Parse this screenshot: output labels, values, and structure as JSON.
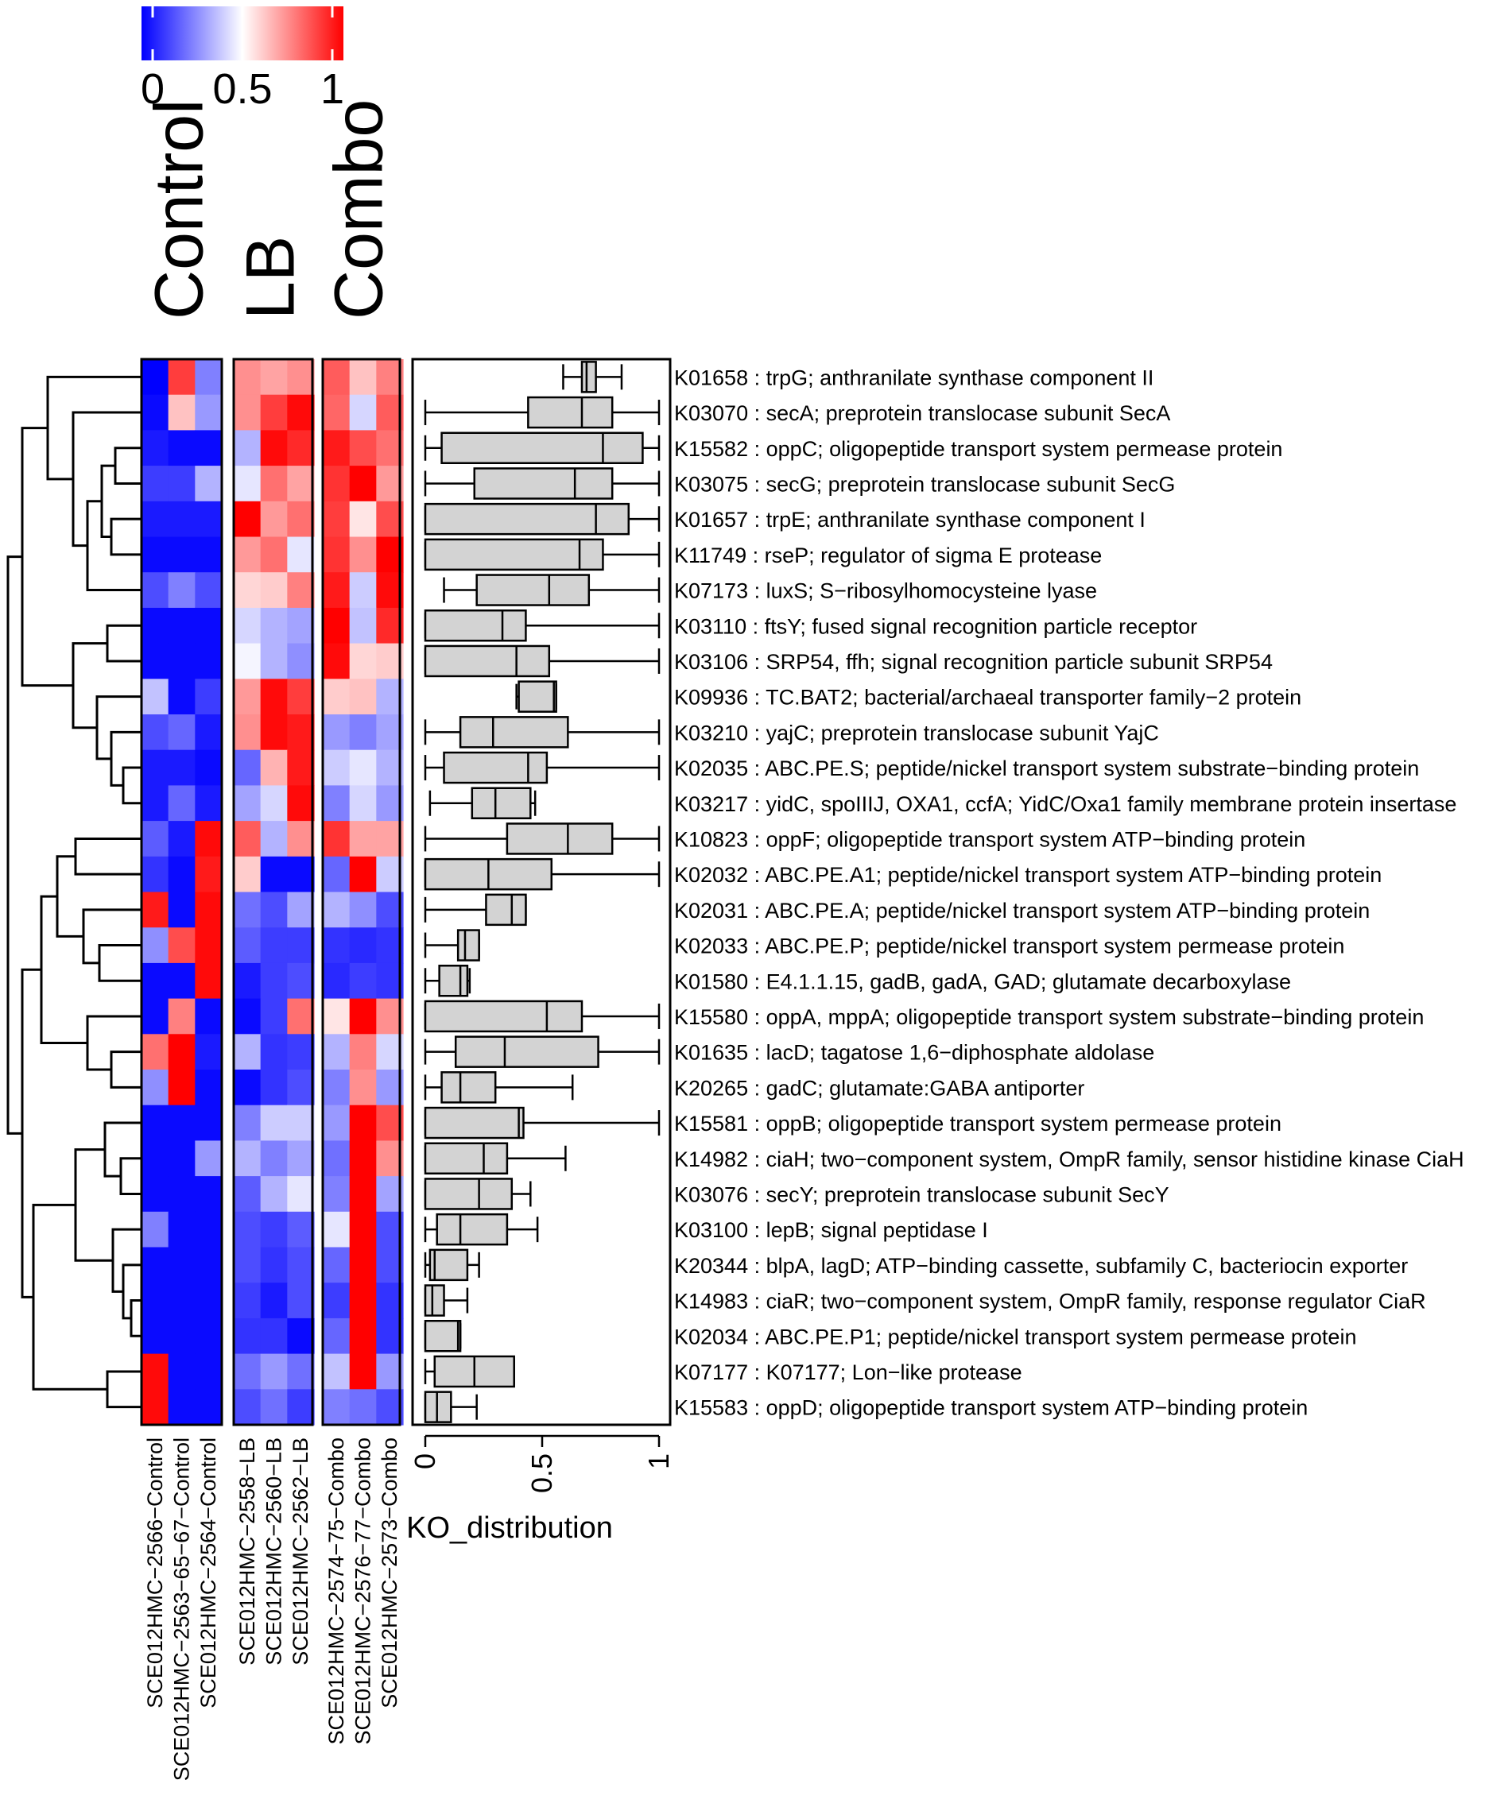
{
  "chart_data": {
    "type": "heatmap",
    "color_scale": {
      "ticks": [
        "0",
        "0.5",
        "1"
      ],
      "low_color": "#0000FF",
      "mid_color": "#FFFFFF",
      "high_color": "#FF0000",
      "range": [
        0,
        1
      ]
    },
    "groups": [
      {
        "name": "Control",
        "columns": [
          "SCE012HMC−2566−Control",
          "SCE012HMC−2563−65−67−Control",
          "SCE012HMC−2564−Control"
        ]
      },
      {
        "name": "LB",
        "columns": [
          "SCE012HMC−2558−LB",
          "SCE012HMC−2560−LB",
          "SCE012HMC−2562−LB"
        ]
      },
      {
        "name": "Combo",
        "columns": [
          "SCE012HMC−2574−75−Combo",
          "SCE012HMC−2576−77−Combo",
          "SCE012HMC−2573−Combo"
        ]
      }
    ],
    "rows": [
      {
        "label": "K01658 : trpG; anthranilate synthase component II",
        "values": [
          0.0,
          0.88,
          0.25,
          0.72,
          0.68,
          0.72,
          0.82,
          0.62,
          0.75
        ]
      },
      {
        "label": "K03070 : secA; preprotein translocase subunit SecA",
        "values": [
          0.02,
          0.62,
          0.3,
          0.72,
          0.88,
          0.98,
          0.8,
          0.42,
          0.82
        ]
      },
      {
        "label": "K15582 : oppC; oligopeptide transport system permease protein",
        "values": [
          0.05,
          0.02,
          0.02,
          0.35,
          0.98,
          0.92,
          0.95,
          0.85,
          0.78
        ]
      },
      {
        "label": "K03075 : secG; preprotein translocase subunit SecG",
        "values": [
          0.12,
          0.12,
          0.35,
          0.45,
          0.78,
          0.68,
          0.9,
          1.0,
          0.7
        ]
      },
      {
        "label": "K01657 : trpE; anthranilate synthase component I",
        "values": [
          0.05,
          0.05,
          0.05,
          1.0,
          0.7,
          0.78,
          0.88,
          0.55,
          0.85
        ]
      },
      {
        "label": "K11749 : rseP; regulator of sigma E protease",
        "values": [
          0.02,
          0.02,
          0.02,
          0.7,
          0.78,
          0.45,
          0.9,
          0.72,
          1.0
        ]
      },
      {
        "label": "K07173 : luxS; S−ribosylhomocysteine lyase",
        "values": [
          0.15,
          0.25,
          0.15,
          0.58,
          0.6,
          0.75,
          0.95,
          0.4,
          0.98
        ]
      },
      {
        "label": "K03110 : ftsY; fused signal recognition particle receptor",
        "values": [
          0.02,
          0.02,
          0.02,
          0.42,
          0.35,
          0.32,
          1.0,
          0.38,
          0.92
        ]
      },
      {
        "label": "K03106 : SRP54, ffh; signal recognition particle subunit SRP54",
        "values": [
          0.02,
          0.02,
          0.02,
          0.48,
          0.35,
          0.28,
          0.98,
          0.58,
          0.6
        ]
      },
      {
        "label": "K09936 : TC.BAT2; bacterial/archaeal transporter family−2 protein",
        "values": [
          0.38,
          0.02,
          0.12,
          0.7,
          0.98,
          0.88,
          0.6,
          0.62,
          0.35
        ]
      },
      {
        "label": "K03210 : yajC; preprotein translocase subunit YajC",
        "values": [
          0.15,
          0.2,
          0.05,
          0.72,
          0.98,
          0.95,
          0.3,
          0.25,
          0.32
        ]
      },
      {
        "label": "K02035 : ABC.PE.S; peptide/nickel transport system substrate−binding protein",
        "values": [
          0.05,
          0.05,
          0.02,
          0.2,
          0.65,
          0.95,
          0.4,
          0.45,
          0.35
        ]
      },
      {
        "label": "K03217 : yidC, spoIIIJ, OXA1, ccfA; YidC/Oxa1 family membrane protein insertase",
        "values": [
          0.05,
          0.2,
          0.05,
          0.32,
          0.42,
          0.98,
          0.25,
          0.42,
          0.3
        ]
      },
      {
        "label": "K10823 : oppF; oligopeptide transport system ATP−binding protein",
        "values": [
          0.18,
          0.05,
          0.98,
          0.82,
          0.35,
          0.72,
          0.9,
          0.68,
          0.68
        ]
      },
      {
        "label": "K02032 : ABC.PE.A1; peptide/nickel transport system ATP−binding protein",
        "values": [
          0.1,
          0.02,
          0.95,
          0.6,
          0.02,
          0.02,
          0.2,
          1.0,
          0.4
        ]
      },
      {
        "label": "K02031 : ABC.PE.A; peptide/nickel transport system ATP−binding protein",
        "values": [
          0.95,
          0.02,
          0.98,
          0.22,
          0.15,
          0.32,
          0.35,
          0.28,
          0.15
        ]
      },
      {
        "label": "K02033 : ABC.PE.P; peptide/nickel transport system permease protein",
        "values": [
          0.28,
          0.85,
          0.98,
          0.18,
          0.12,
          0.12,
          0.1,
          0.08,
          0.1
        ]
      },
      {
        "label": "K01580 : E4.1.1.15, gadB, gadA, GAD; glutamate decarboxylase",
        "values": [
          0.02,
          0.02,
          0.98,
          0.05,
          0.12,
          0.15,
          0.08,
          0.12,
          0.1
        ]
      },
      {
        "label": "K15580 : oppA, mppA; oligopeptide transport system substrate−binding protein",
        "values": [
          0.02,
          0.75,
          0.02,
          0.02,
          0.12,
          0.78,
          0.55,
          1.0,
          0.72
        ]
      },
      {
        "label": "K01635 : lacD; tagatose 1,6−diphosphate aldolase",
        "values": [
          0.78,
          1.0,
          0.05,
          0.35,
          0.1,
          0.12,
          0.35,
          0.75,
          0.42
        ]
      },
      {
        "label": "K20265 : gadC; glutamate:GABA antiporter",
        "values": [
          0.28,
          1.0,
          0.02,
          0.02,
          0.1,
          0.15,
          0.25,
          0.72,
          0.3
        ]
      },
      {
        "label": "K15581 : oppB; oligopeptide transport system permease protein",
        "values": [
          0.02,
          0.02,
          0.02,
          0.25,
          0.4,
          0.4,
          0.3,
          1.0,
          0.85
        ]
      },
      {
        "label": "K14982 : ciaH; two−component system, OmpR family, sensor histidine kinase CiaH",
        "values": [
          0.02,
          0.02,
          0.3,
          0.35,
          0.25,
          0.32,
          0.22,
          1.0,
          0.72
        ]
      },
      {
        "label": "K03076 : secY; preprotein translocase subunit SecY",
        "values": [
          0.02,
          0.02,
          0.02,
          0.18,
          0.35,
          0.45,
          0.25,
          1.0,
          0.32
        ]
      },
      {
        "label": "K03100 : lepB; signal peptidase I",
        "values": [
          0.25,
          0.02,
          0.02,
          0.15,
          0.12,
          0.18,
          0.45,
          1.0,
          0.15
        ]
      },
      {
        "label": "K20344 : blpA, lagD; ATP−binding cassette, subfamily C, bacteriocin exporter",
        "values": [
          0.02,
          0.02,
          0.02,
          0.15,
          0.1,
          0.15,
          0.2,
          1.0,
          0.15
        ]
      },
      {
        "label": "K14983 : ciaR; two−component system, OmpR family, response regulator CiaR",
        "values": [
          0.02,
          0.02,
          0.02,
          0.12,
          0.05,
          0.15,
          0.12,
          1.0,
          0.1
        ]
      },
      {
        "label": "K02034 : ABC.PE.P1; peptide/nickel transport system permease protein",
        "values": [
          0.02,
          0.02,
          0.02,
          0.1,
          0.1,
          0.02,
          0.2,
          1.0,
          0.1
        ]
      },
      {
        "label": "K07177 : K07177; Lon−like protease",
        "values": [
          0.98,
          0.02,
          0.02,
          0.22,
          0.3,
          0.22,
          0.38,
          1.0,
          0.3
        ]
      },
      {
        "label": "K15583 : oppD; oligopeptide transport system ATP−binding protein",
        "values": [
          0.98,
          0.02,
          0.02,
          0.15,
          0.22,
          0.12,
          0.25,
          0.22,
          0.15
        ]
      }
    ],
    "boxplot": {
      "xlabel": "KO_distribution",
      "xlim": [
        0,
        1
      ],
      "ticks": [
        "0",
        "0.5",
        "1"
      ],
      "stats": [
        [
          0.59,
          0.67,
          0.69,
          0.73,
          0.84
        ],
        [
          0.0,
          0.44,
          0.67,
          0.8,
          1.0
        ],
        [
          0.0,
          0.07,
          0.76,
          0.93,
          1.0
        ],
        [
          0.0,
          0.21,
          0.64,
          0.8,
          1.0
        ],
        [
          0.0,
          0.0,
          0.73,
          0.87,
          1.0
        ],
        [
          0.0,
          0.0,
          0.66,
          0.76,
          1.0
        ],
        [
          0.08,
          0.22,
          0.53,
          0.7,
          1.0
        ],
        [
          0.0,
          0.0,
          0.33,
          0.43,
          1.0
        ],
        [
          0.0,
          0.0,
          0.39,
          0.53,
          1.0
        ],
        [
          0.39,
          0.4,
          0.55,
          0.56,
          0.56
        ],
        [
          0.0,
          0.15,
          0.29,
          0.61,
          1.0
        ],
        [
          0.0,
          0.08,
          0.44,
          0.52,
          1.0
        ],
        [
          0.02,
          0.2,
          0.3,
          0.45,
          0.47
        ],
        [
          0.0,
          0.35,
          0.61,
          0.8,
          1.0
        ],
        [
          0.0,
          0.0,
          0.27,
          0.54,
          1.0
        ],
        [
          0.0,
          0.26,
          0.37,
          0.43,
          0.43
        ],
        [
          0.0,
          0.14,
          0.17,
          0.23,
          0.23
        ],
        [
          0.0,
          0.06,
          0.15,
          0.18,
          0.19
        ],
        [
          0.0,
          0.0,
          0.52,
          0.67,
          1.0
        ],
        [
          0.0,
          0.13,
          0.34,
          0.74,
          1.0
        ],
        [
          0.0,
          0.07,
          0.15,
          0.3,
          0.63
        ],
        [
          0.0,
          0.0,
          0.4,
          0.42,
          1.0
        ],
        [
          0.0,
          0.0,
          0.25,
          0.35,
          0.6
        ],
        [
          0.0,
          0.0,
          0.23,
          0.37,
          0.45
        ],
        [
          0.0,
          0.05,
          0.15,
          0.35,
          0.48
        ],
        [
          0.0,
          0.02,
          0.04,
          0.18,
          0.23
        ],
        [
          0.0,
          0.0,
          0.03,
          0.08,
          0.18
        ],
        [
          0.0,
          0.0,
          0.14,
          0.15,
          0.15
        ],
        [
          0.0,
          0.04,
          0.21,
          0.38,
          0.38
        ],
        [
          0.0,
          0.0,
          0.05,
          0.11,
          0.22
        ]
      ]
    }
  }
}
